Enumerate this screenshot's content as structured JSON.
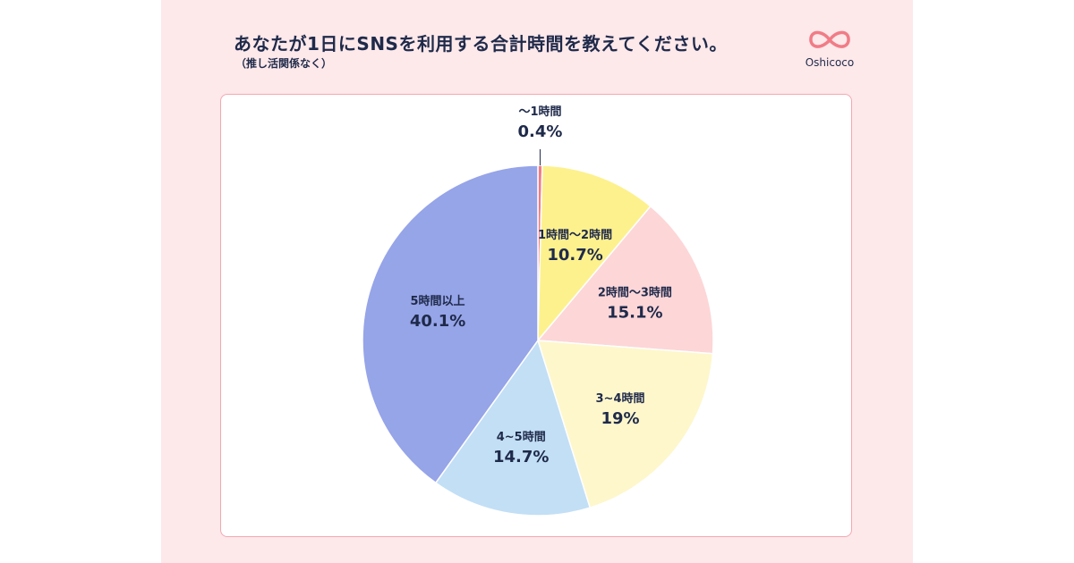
{
  "header": {
    "title": "あなたが1日にSNSを利用する合計時間を教えてください。",
    "subtitle": "（推し活関係なく）"
  },
  "logo": {
    "text": "Oshicoco",
    "icon": "double-heart-logo-icon",
    "color": "#f07c86"
  },
  "chart_data": {
    "type": "pie",
    "title": "あなたが1日にSNSを利用する合計時間を教えてください。",
    "subtitle": "（推し活関係なく）",
    "start_angle_deg": 0,
    "direction": "clockwise",
    "slices": [
      {
        "label": "〜1時間",
        "value": 0.4,
        "display": "0.4%",
        "color": "#f07c86",
        "label_outside": true
      },
      {
        "label": "1時間〜2時間",
        "value": 10.7,
        "display": "10.7%",
        "color": "#fdf18e"
      },
      {
        "label": "2時間〜3時間",
        "value": 15.1,
        "display": "15.1%",
        "color": "#fdd6d8"
      },
      {
        "label": "3~4時間",
        "value": 19,
        "display": "19%",
        "color": "#fef7cc"
      },
      {
        "label": "4~5時間",
        "value": 14.7,
        "display": "14.7%",
        "color": "#c2dff5"
      },
      {
        "label": "5時間以上",
        "value": 40.1,
        "display": "40.1%",
        "color": "#96a4e8"
      }
    ]
  }
}
